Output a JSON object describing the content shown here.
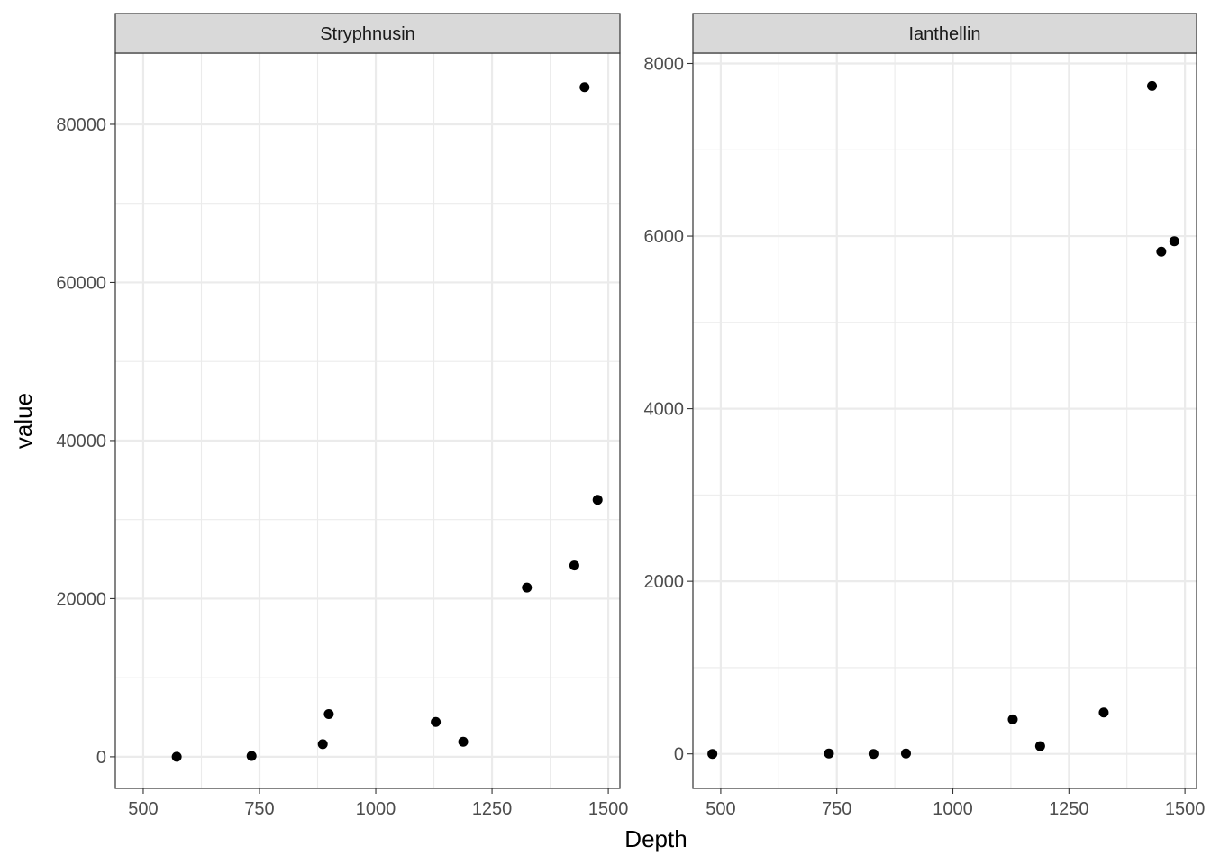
{
  "chart_data": {
    "type": "scatter",
    "xlabel": "Depth",
    "ylabel": "value",
    "grid": true,
    "panels": [
      {
        "title": "Stryphnusin",
        "xlim": [
          440,
          1525
        ],
        "ylim": [
          -4000,
          89000
        ],
        "xticks": [
          500,
          750,
          1000,
          1250,
          1500
        ],
        "xtick_labels": [
          "500",
          "750",
          "1000",
          "1250",
          "1500"
        ],
        "yticks": [
          0,
          20000,
          40000,
          60000,
          80000
        ],
        "ytick_labels": [
          "0",
          "20000",
          "40000",
          "60000",
          "80000"
        ],
        "points": [
          {
            "x": 572,
            "y": 0
          },
          {
            "x": 733,
            "y": 100
          },
          {
            "x": 886,
            "y": 1600
          },
          {
            "x": 899,
            "y": 5400
          },
          {
            "x": 1129,
            "y": 4400
          },
          {
            "x": 1188,
            "y": 1900
          },
          {
            "x": 1325,
            "y": 21400
          },
          {
            "x": 1427,
            "y": 24200
          },
          {
            "x": 1449,
            "y": 84700
          },
          {
            "x": 1477,
            "y": 32500
          }
        ]
      },
      {
        "title": "Ianthellin",
        "xlim": [
          440,
          1525
        ],
        "ylim": [
          -400,
          8120
        ],
        "xticks": [
          500,
          750,
          1000,
          1250,
          1500
        ],
        "xtick_labels": [
          "500",
          "750",
          "1000",
          "1250",
          "1500"
        ],
        "yticks": [
          0,
          2000,
          4000,
          6000,
          8000
        ],
        "ytick_labels": [
          "0",
          "2000",
          "4000",
          "6000",
          "8000"
        ],
        "points": [
          {
            "x": 482,
            "y": 0
          },
          {
            "x": 733,
            "y": 5
          },
          {
            "x": 829,
            "y": 0
          },
          {
            "x": 899,
            "y": 5
          },
          {
            "x": 1129,
            "y": 400
          },
          {
            "x": 1188,
            "y": 90
          },
          {
            "x": 1325,
            "y": 480
          },
          {
            "x": 1429,
            "y": 7740
          },
          {
            "x": 1449,
            "y": 5820
          },
          {
            "x": 1477,
            "y": 5940
          }
        ]
      }
    ]
  }
}
